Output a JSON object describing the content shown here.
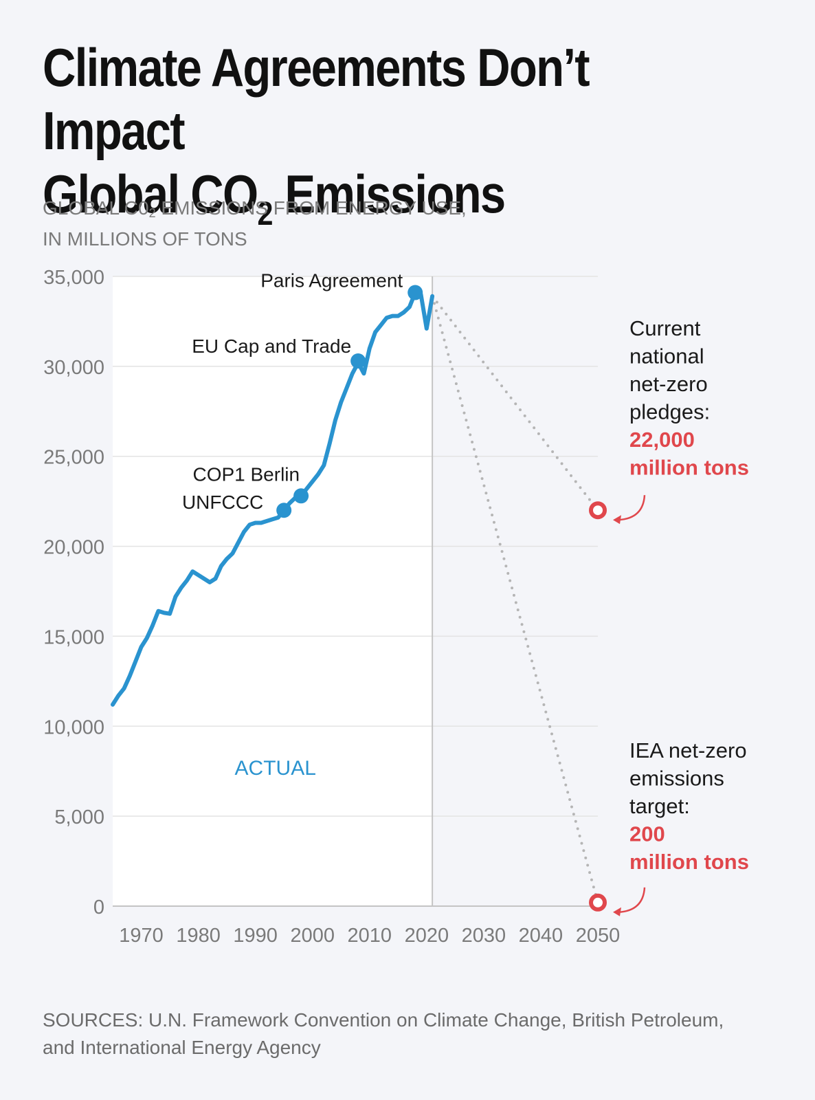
{
  "header": {
    "title_line1": "Climate Agreements Don’t Impact",
    "title_line2_pre": "Global CO",
    "title_line2_sub": "2",
    "title_line2_post": " Emissions",
    "subtitle_pre": "GLOBAL C0",
    "subtitle_sub": "2",
    "subtitle_post": " EMISSIONS FROM ENERGY USE,",
    "subtitle_line2": "IN MILLIONS OF TONS"
  },
  "sources": {
    "line1": "SOURCES: U.N. Framework Convention on Climate Change, British Petroleum,",
    "line2": "and International Energy Agency"
  },
  "colors": {
    "line": "#2a93cf",
    "target": "#e0474c",
    "grid": "#e3e3e3",
    "axis": "#c4c4c4",
    "dotted": "#b5b5b5",
    "tick_text": "#7a7a7a"
  },
  "chart_data": {
    "type": "line",
    "title": "Climate Agreements Don’t Impact Global CO2 Emissions",
    "ylabel": "GLOBAL C02 EMISSIONS FROM ENERGY USE, IN MILLIONS OF TONS",
    "xlim": [
      1965,
      2050
    ],
    "ylim": [
      0,
      35000
    ],
    "yticks": [
      0,
      5000,
      10000,
      15000,
      20000,
      25000,
      30000,
      35000
    ],
    "ytick_labels": [
      "0",
      "5,000",
      "10,000",
      "15,000",
      "20,000",
      "25,000",
      "30,000",
      "35,000"
    ],
    "xticks": [
      1970,
      1980,
      1990,
      2000,
      2010,
      2020,
      2030,
      2040,
      2050
    ],
    "xtick_labels": [
      "1970",
      "1980",
      "1990",
      "2000",
      "2010",
      "2020",
      "2030",
      "2040",
      "2050"
    ],
    "grid": true,
    "divider_year": 2021,
    "region_label": "ACTUAL",
    "series": [
      {
        "name": "Actual emissions",
        "x": [
          1965,
          1966,
          1967,
          1968,
          1969,
          1970,
          1971,
          1972,
          1973,
          1974,
          1975,
          1976,
          1977,
          1978,
          1979,
          1980,
          1981,
          1982,
          1983,
          1984,
          1985,
          1986,
          1987,
          1988,
          1989,
          1990,
          1991,
          1992,
          1993,
          1994,
          1995,
          1996,
          1997,
          1998,
          1999,
          2000,
          2001,
          2002,
          2003,
          2004,
          2005,
          2006,
          2007,
          2008,
          2009,
          2010,
          2011,
          2012,
          2013,
          2014,
          2015,
          2016,
          2017,
          2018,
          2019,
          2020,
          2021
        ],
        "values": [
          11200,
          11700,
          12100,
          12800,
          13600,
          14400,
          14900,
          15600,
          16400,
          16300,
          16250,
          17200,
          17700,
          18100,
          18600,
          18400,
          18200,
          18000,
          18200,
          18900,
          19300,
          19600,
          20200,
          20800,
          21200,
          21300,
          21300,
          21400,
          21500,
          21600,
          22000,
          22400,
          22700,
          22800,
          23200,
          23600,
          24000,
          24500,
          25700,
          27000,
          28000,
          28800,
          29600,
          30200,
          29600,
          31000,
          31900,
          32300,
          32700,
          32800,
          32800,
          33000,
          33300,
          34100,
          34000,
          32100,
          33900
        ]
      }
    ],
    "annotations": [
      {
        "label": "UNFCCC",
        "year": 1995,
        "value": 22000
      },
      {
        "label": "COP1 Berlin",
        "year": 1998,
        "value": 22800
      },
      {
        "label": "EU Cap and Trade",
        "year": 2008,
        "value": 30300
      },
      {
        "label": "Paris Agreement",
        "year": 2018,
        "value": 34100
      }
    ],
    "targets": [
      {
        "name": "Current national net-zero pledges",
        "year": 2050,
        "value": 22000,
        "text_lines": [
          "Current",
          "national",
          "net-zero",
          "pledges:"
        ],
        "value_lines": [
          "22,000",
          "million tons"
        ]
      },
      {
        "name": "IEA net-zero emissions target",
        "year": 2050,
        "value": 200,
        "text_lines": [
          "IEA net-zero",
          "emissions",
          "target:"
        ],
        "value_lines": [
          "200",
          "million tons"
        ]
      }
    ]
  }
}
